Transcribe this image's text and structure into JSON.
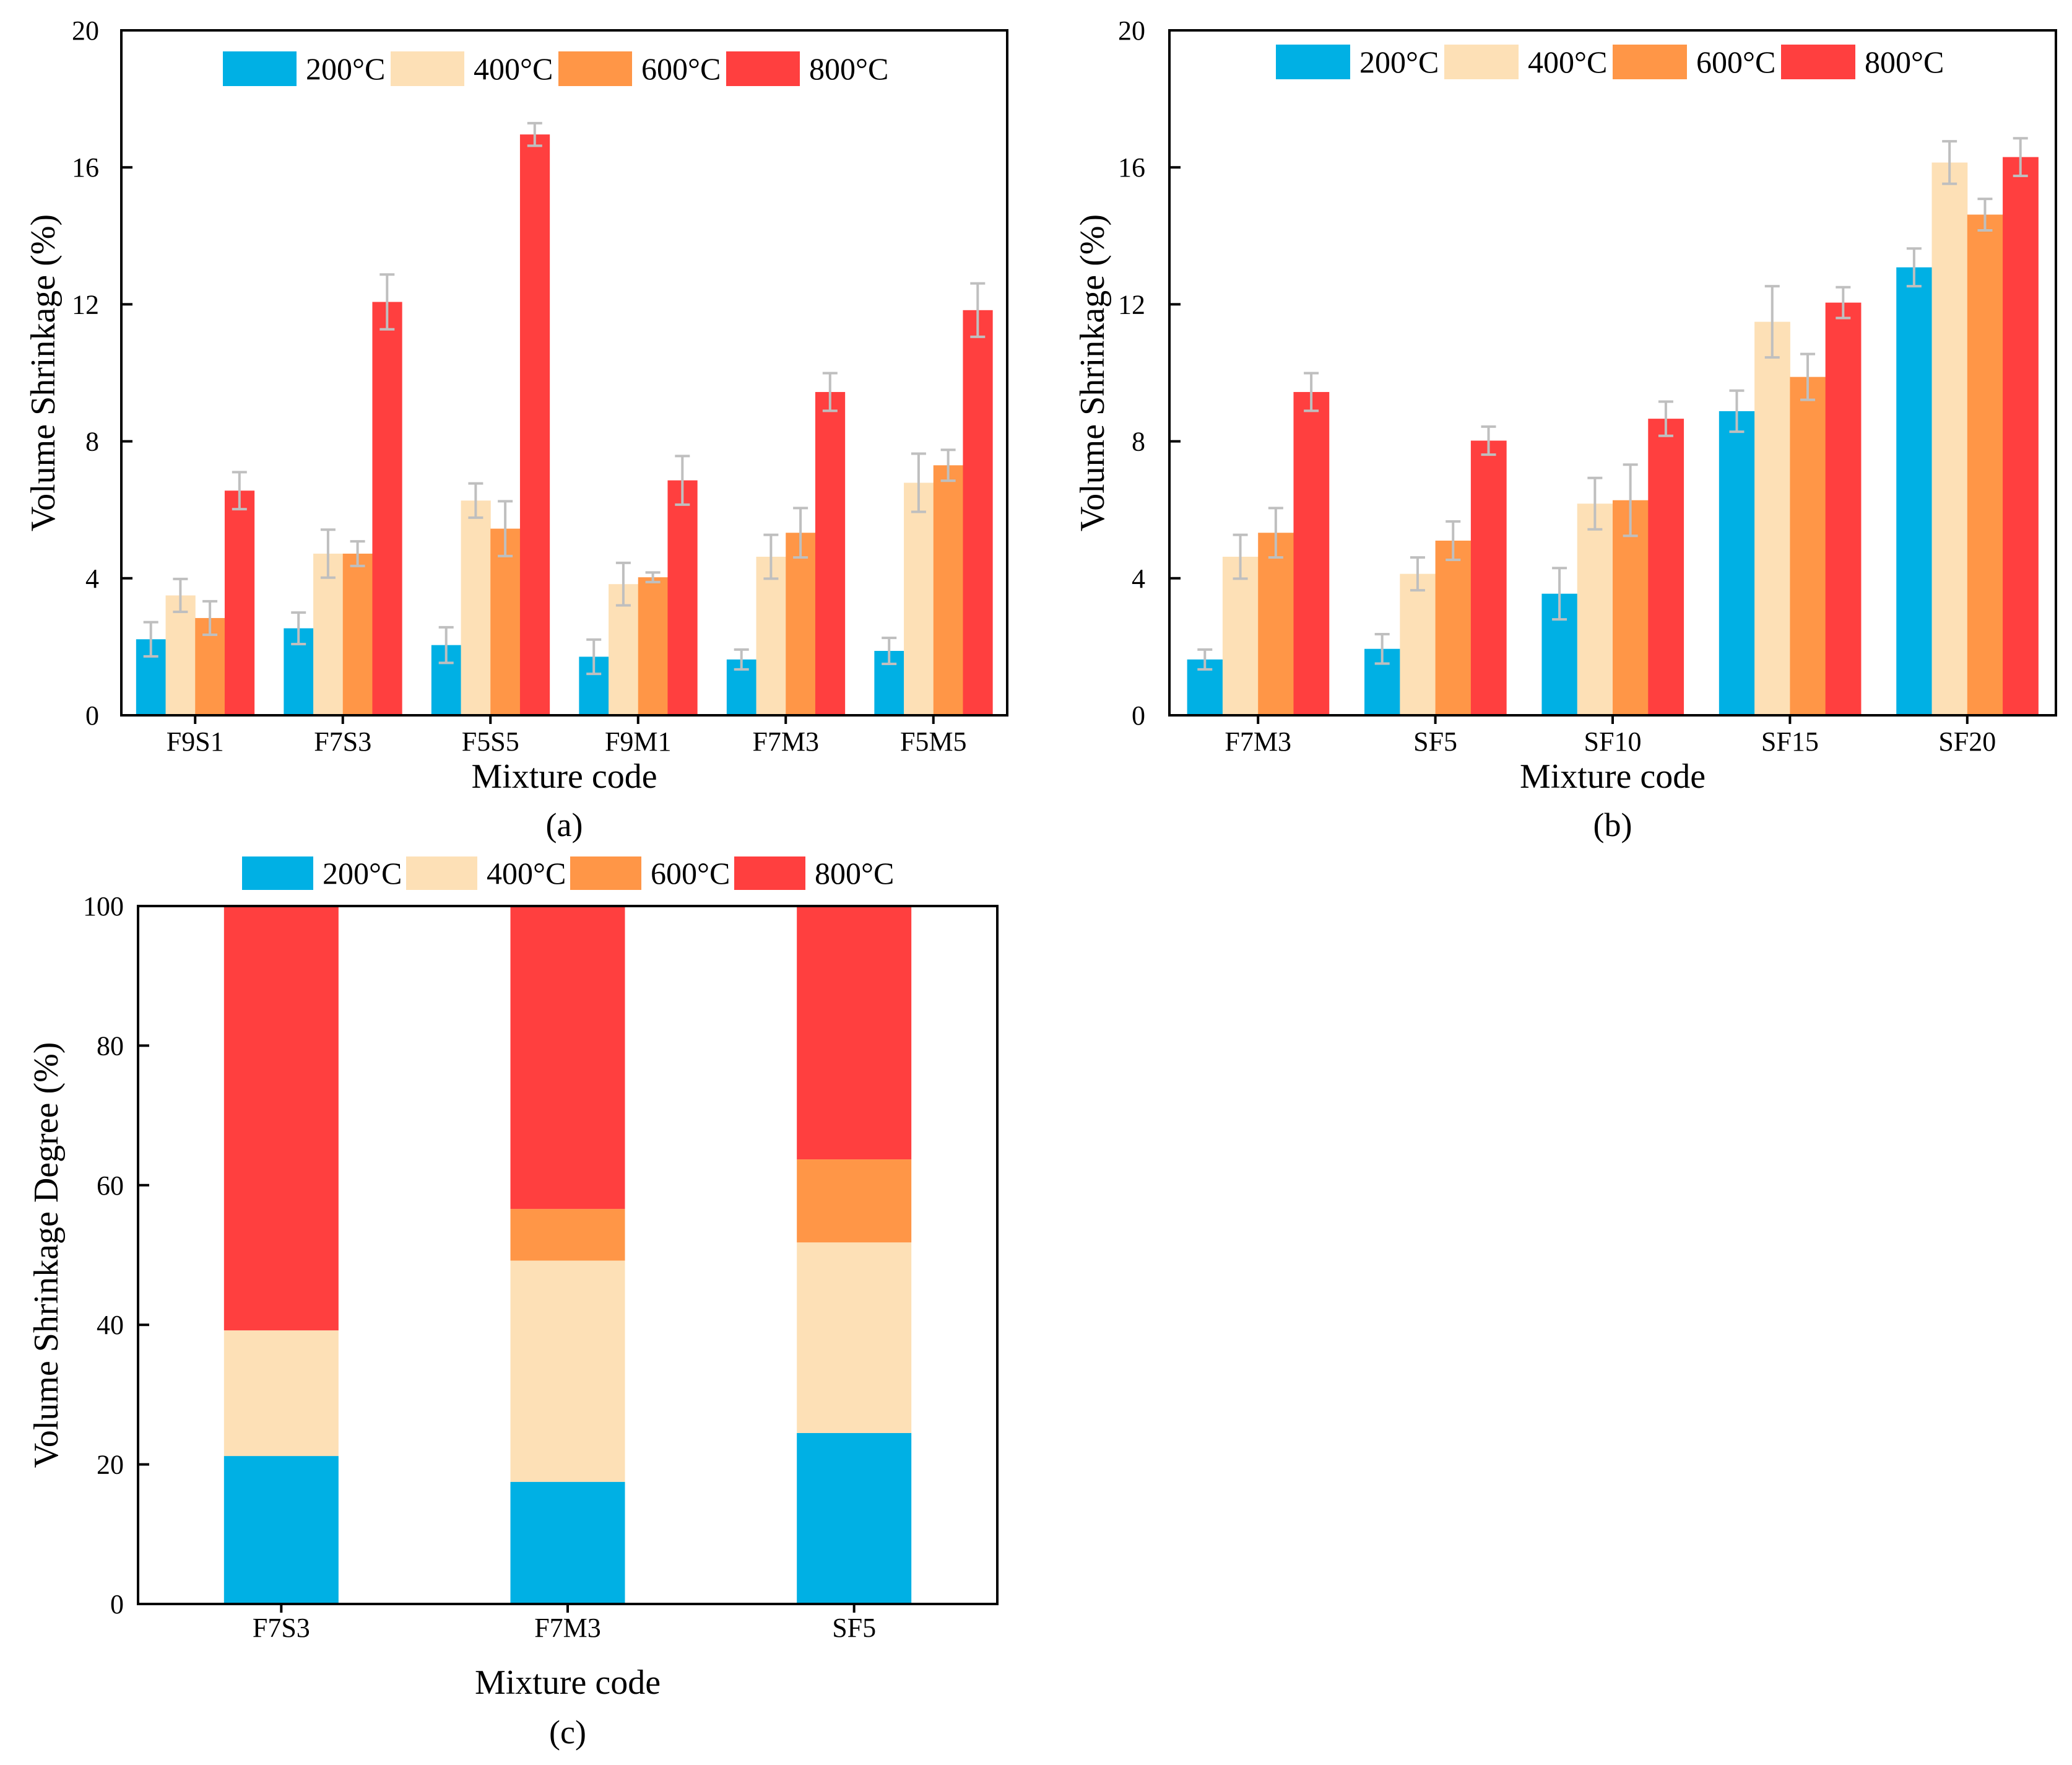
{
  "colors": {
    "200": "#00b0e4",
    "400": "#fde0b6",
    "600": "#ff9647",
    "800": "#ff3f3f",
    "error_bar": "#bfbfbf"
  },
  "chart_data": [
    {
      "type": "bar",
      "panel_label": "(a)",
      "title": "",
      "xlabel": "Mixture code",
      "ylabel": "Volume Shrinkage (%)",
      "ylim": [
        0,
        20
      ],
      "yticks": [
        "0",
        "4",
        "8",
        "12",
        "16",
        "20"
      ],
      "yticks_values": [
        0,
        4,
        8,
        12,
        16,
        20
      ],
      "legend": "top-center",
      "categories": [
        "F9S1",
        "F7S3",
        "F5S5",
        "F9M1",
        "F7M3",
        "F5M5"
      ],
      "series": [
        {
          "name": "200°C",
          "values": [
            2.22,
            2.54,
            2.05,
            1.71,
            1.63,
            1.88
          ],
          "errors": [
            0.5,
            0.46,
            0.52,
            0.5,
            0.29,
            0.38
          ]
        },
        {
          "name": "400°C",
          "values": [
            3.5,
            4.72,
            6.27,
            3.83,
            4.63,
            6.79
          ],
          "errors": [
            0.48,
            0.7,
            0.5,
            0.62,
            0.64,
            0.85
          ]
        },
        {
          "name": "600°C",
          "values": [
            2.84,
            4.72,
            5.45,
            4.03,
            5.33,
            7.3
          ],
          "errors": [
            0.49,
            0.36,
            0.8,
            0.14,
            0.72,
            0.45
          ]
        },
        {
          "name": "800°C",
          "values": [
            6.56,
            12.07,
            16.96,
            6.86,
            9.44,
            11.83
          ],
          "errors": [
            0.54,
            0.8,
            0.33,
            0.71,
            0.55,
            0.78
          ]
        }
      ]
    },
    {
      "type": "bar",
      "panel_label": "(b)",
      "title": "",
      "xlabel": "Mixture code",
      "ylabel": "Volume Shrinkage (%)",
      "ylim": [
        0,
        20
      ],
      "yticks": [
        "0",
        "4",
        "8",
        "12",
        "16",
        "20"
      ],
      "yticks_values": [
        0,
        4,
        8,
        12,
        16,
        20
      ],
      "legend": "top-center",
      "categories": [
        "F7M3",
        "SF5",
        "SF10",
        "SF15",
        "SF20"
      ],
      "series": [
        {
          "name": "200°C",
          "values": [
            1.63,
            1.94,
            3.55,
            8.88,
            13.08
          ],
          "errors": [
            0.29,
            0.43,
            0.75,
            0.6,
            0.55
          ]
        },
        {
          "name": "400°C",
          "values": [
            4.63,
            4.13,
            6.18,
            11.49,
            16.14
          ],
          "errors": [
            0.64,
            0.48,
            0.75,
            1.04,
            0.62
          ]
        },
        {
          "name": "600°C",
          "values": [
            5.33,
            5.1,
            6.28,
            9.88,
            14.62
          ],
          "errors": [
            0.72,
            0.56,
            1.04,
            0.67,
            0.46
          ]
        },
        {
          "name": "800°C",
          "values": [
            9.44,
            8.02,
            8.66,
            12.05,
            16.3
          ],
          "errors": [
            0.55,
            0.41,
            0.5,
            0.45,
            0.55
          ]
        }
      ]
    },
    {
      "type": "bar",
      "stacked": true,
      "panel_label": "(c)",
      "title": "",
      "xlabel": "Mixture code",
      "ylabel": "Volume Shrinkage Degree (%)",
      "ylim": [
        0,
        100
      ],
      "yticks": [
        "0",
        "20",
        "40",
        "60",
        "80",
        "100"
      ],
      "yticks_values": [
        0,
        20,
        40,
        60,
        80,
        100
      ],
      "legend": "top-outside",
      "categories": [
        "F7S3",
        "F7M3",
        "SF5"
      ],
      "series": [
        {
          "name": "200°C",
          "values": [
            21.2,
            17.5,
            24.5
          ]
        },
        {
          "name": "400°C",
          "values": [
            18.0,
            31.7,
            27.3
          ]
        },
        {
          "name": "600°C",
          "values": [
            0.0,
            7.4,
            11.9
          ]
        },
        {
          "name": "800°C",
          "values": [
            60.8,
            43.4,
            36.3
          ]
        }
      ]
    }
  ]
}
